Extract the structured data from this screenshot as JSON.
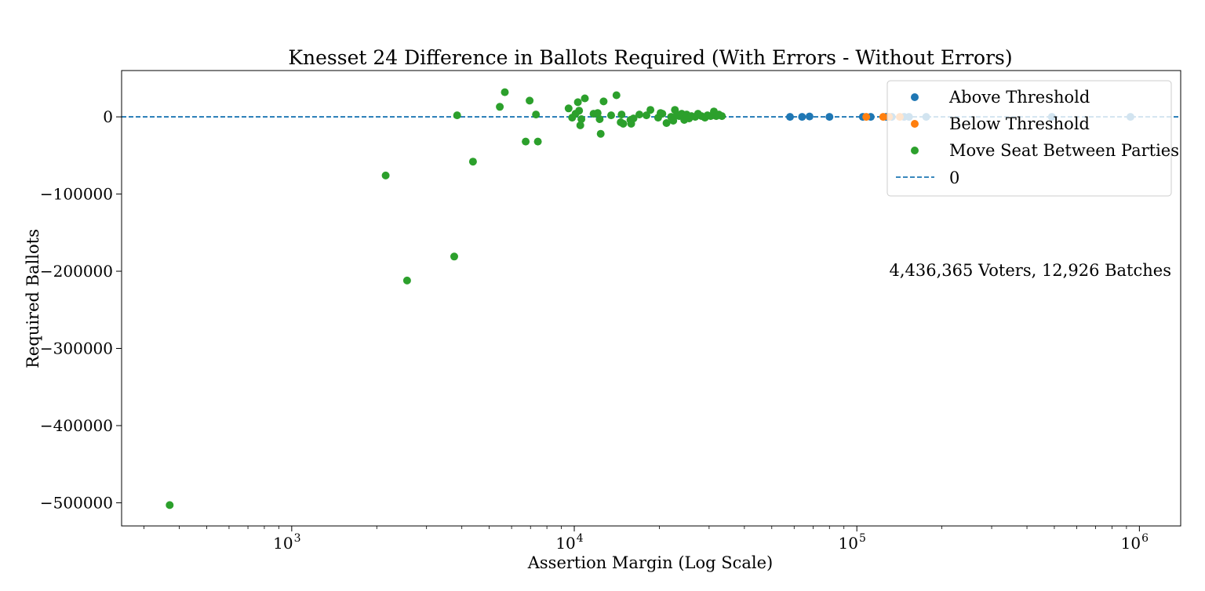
{
  "chart_data": {
    "type": "scatter",
    "title": "Knesset 24 Difference in Ballots Required (With Errors - Without Errors)",
    "xlabel": "Assertion Margin (Log Scale)",
    "ylabel": "Required Ballots",
    "xscale": "log",
    "xlim": [
      250,
      1400000
    ],
    "ylim": [
      -530000,
      60000
    ],
    "grid": false,
    "legend_position": "top-right",
    "annotation": "4,436,365 Voters, 12,926 Batches",
    "x_tick_labels": [
      {
        "base": "10",
        "exp": "3",
        "value": 1000
      },
      {
        "base": "10",
        "exp": "4",
        "value": 10000
      },
      {
        "base": "10",
        "exp": "5",
        "value": 100000
      },
      {
        "base": "10",
        "exp": "6",
        "value": 1000000
      }
    ],
    "y_ticks": [
      0,
      -100000,
      -200000,
      -300000,
      -400000,
      -500000
    ],
    "y_tick_labels": [
      "0",
      "−100000",
      "−200000",
      "−300000",
      "−400000",
      "−500000"
    ],
    "reference_line": {
      "label": "0",
      "y": 0,
      "color": "#1f77b4",
      "style": "dashed"
    },
    "series": [
      {
        "name": "Above Threshold",
        "color": "#1f77b4",
        "points": [
          [
            58000,
            0
          ],
          [
            64000,
            0
          ],
          [
            68000,
            500
          ],
          [
            80000,
            0
          ],
          [
            105000,
            0
          ],
          [
            112000,
            0
          ],
          [
            127000,
            0
          ],
          [
            133000,
            0
          ],
          [
            147000,
            0
          ],
          [
            153000,
            0
          ],
          [
            176000,
            0
          ],
          [
            490000,
            0
          ],
          [
            930000,
            0
          ]
        ]
      },
      {
        "name": "Below Threshold",
        "color": "#ff7f0e",
        "points": [
          [
            108000,
            0
          ],
          [
            124000,
            0
          ],
          [
            130000,
            0
          ],
          [
            142000,
            0
          ]
        ]
      },
      {
        "name": "Move Seat Between Parties",
        "color": "#2ca02c",
        "points": [
          [
            370,
            -503000
          ],
          [
            2150,
            -76000
          ],
          [
            2560,
            -212000
          ],
          [
            3760,
            -181000
          ],
          [
            3850,
            2000
          ],
          [
            4380,
            -58000
          ],
          [
            5450,
            13000
          ],
          [
            5680,
            32000
          ],
          [
            6730,
            -32000
          ],
          [
            6950,
            21000
          ],
          [
            7320,
            3000
          ],
          [
            7430,
            -32000
          ],
          [
            9550,
            11000
          ],
          [
            9830,
            -1000
          ],
          [
            10100,
            4000
          ],
          [
            10300,
            19000
          ],
          [
            10400,
            8000
          ],
          [
            10500,
            -11000
          ],
          [
            10600,
            -3000
          ],
          [
            10900,
            24000
          ],
          [
            11700,
            4000
          ],
          [
            12100,
            5000
          ],
          [
            12300,
            -3000
          ],
          [
            12400,
            -22000
          ],
          [
            12700,
            20000
          ],
          [
            13500,
            2000
          ],
          [
            14100,
            28000
          ],
          [
            14600,
            -7000
          ],
          [
            14700,
            3000
          ],
          [
            14900,
            -9000
          ],
          [
            15800,
            -4000
          ],
          [
            15900,
            -9000
          ],
          [
            16200,
            -2000
          ],
          [
            17000,
            3000
          ],
          [
            18000,
            2000
          ],
          [
            18600,
            9000
          ],
          [
            19800,
            -1000
          ],
          [
            20200,
            5000
          ],
          [
            20500,
            4000
          ],
          [
            21200,
            -8000
          ],
          [
            22000,
            0
          ],
          [
            22400,
            -5000
          ],
          [
            22700,
            9000
          ],
          [
            23100,
            3000
          ],
          [
            23500,
            1000
          ],
          [
            24000,
            4000
          ],
          [
            24500,
            -4000
          ],
          [
            25000,
            3000
          ],
          [
            25500,
            -2000
          ],
          [
            26000,
            1000
          ],
          [
            26800,
            0
          ],
          [
            27400,
            4000
          ],
          [
            28200,
            1000
          ],
          [
            29000,
            -1000
          ],
          [
            29600,
            2000
          ],
          [
            30400,
            1000
          ],
          [
            31200,
            7000
          ],
          [
            31800,
            1000
          ],
          [
            32500,
            3000
          ],
          [
            33300,
            1000
          ]
        ]
      }
    ]
  }
}
